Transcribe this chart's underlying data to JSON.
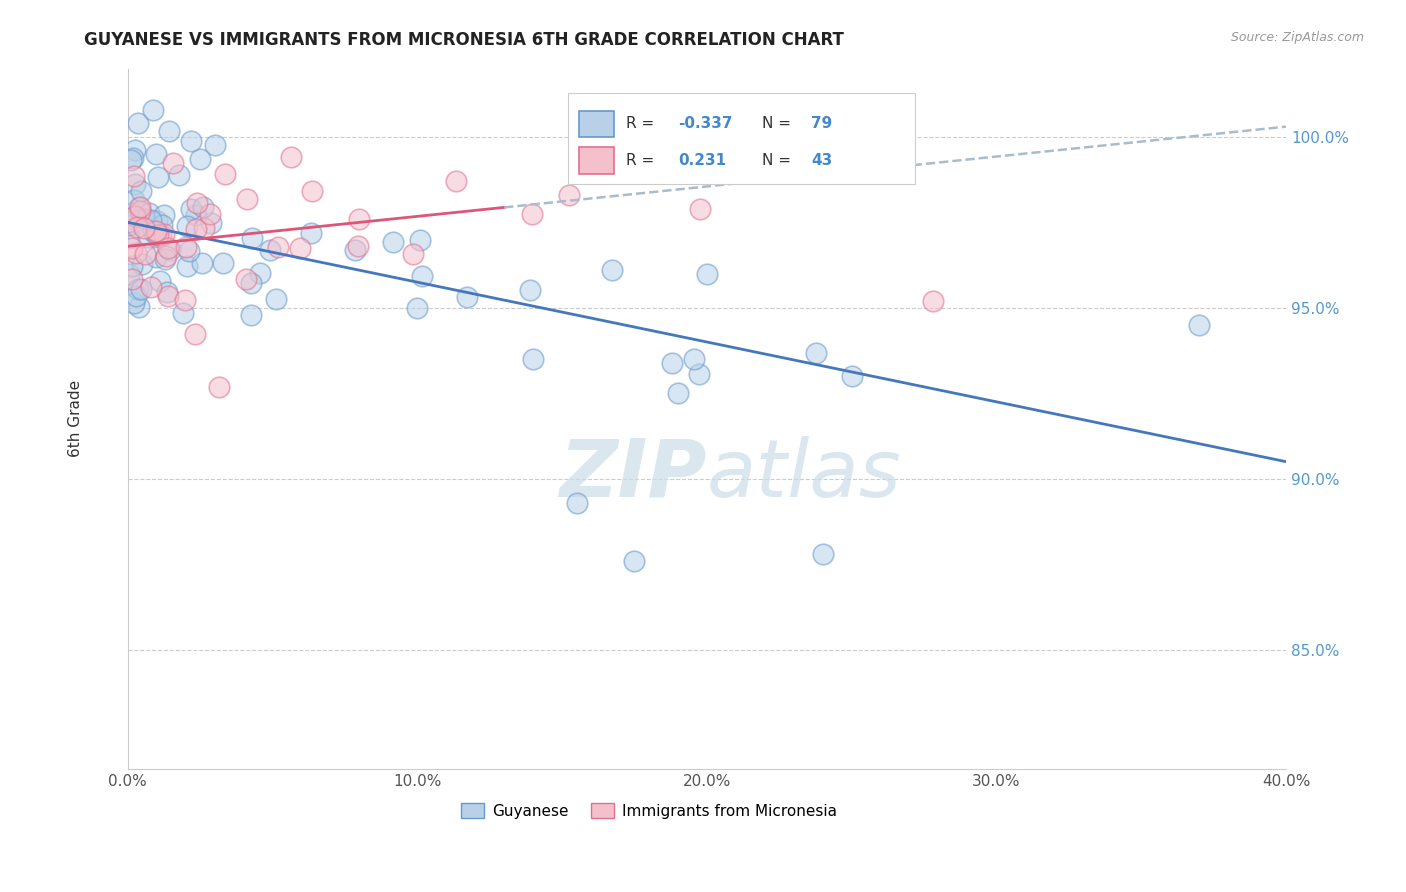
{
  "title": "GUYANESE VS IMMIGRANTS FROM MICRONESIA 6TH GRADE CORRELATION CHART",
  "source_text": "Source: ZipAtlas.com",
  "label_blue": "Guyanese",
  "label_pink": "Immigrants from Micronesia",
  "ylabel": "6th Grade",
  "r_blue": -0.337,
  "n_blue": 79,
  "r_pink": 0.231,
  "n_pink": 43,
  "xlim": [
    0.0,
    0.4
  ],
  "ylim": [
    0.815,
    1.02
  ],
  "yticks": [
    0.85,
    0.9,
    0.95,
    1.0
  ],
  "ytick_labels": [
    "85.0%",
    "90.0%",
    "95.0%",
    "100.0%"
  ],
  "xticks": [
    0.0,
    0.1,
    0.2,
    0.3,
    0.4
  ],
  "xtick_labels": [
    "0.0%",
    "10.0%",
    "20.0%",
    "30.0%",
    "40.0%"
  ],
  "color_blue_fill": "#b8d0e8",
  "color_blue_edge": "#6699cc",
  "color_pink_fill": "#f4c0cc",
  "color_pink_edge": "#e07090",
  "color_blue_line": "#4477bb",
  "color_pink_line": "#dd5577",
  "color_dashed_line": "#aabbcc",
  "watermark_color": "#ccdde8"
}
